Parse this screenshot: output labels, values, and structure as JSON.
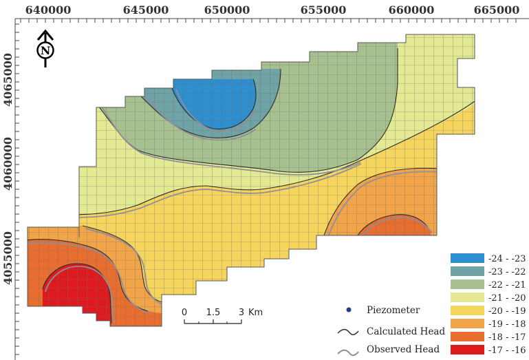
{
  "map": {
    "x_ticks": [
      "640000",
      "645000",
      "650000",
      "655000",
      "660000",
      "665000"
    ],
    "y_ticks": [
      "4065000",
      "4060000",
      "4055000"
    ],
    "north_arrow": {
      "letter": "N",
      "icon": "north-arrow-icon"
    },
    "legend": [
      {
        "label": "-24 - -23",
        "color": "#2f8fce"
      },
      {
        "label": "-23 - -22",
        "color": "#6fa3a5"
      },
      {
        "label": "-22 - -21",
        "color": "#a6c08f"
      },
      {
        "label": "-21 - -20",
        "color": "#e3ea93"
      },
      {
        "label": "-20 - -19",
        "color": "#f6d55e"
      },
      {
        "label": "-19 - -18",
        "color": "#f1a548"
      },
      {
        "label": "-18 - -17",
        "color": "#e86e2f"
      },
      {
        "label": "-17 - -16",
        "color": "#dd1b1f"
      }
    ],
    "key": {
      "piezometer": "Piezometer",
      "calculated_head": "Calculated Head",
      "observed_head": "Observed Head"
    },
    "scale_bar": {
      "labels": [
        "0",
        "1.5",
        "3"
      ],
      "unit": "Km"
    }
  }
}
